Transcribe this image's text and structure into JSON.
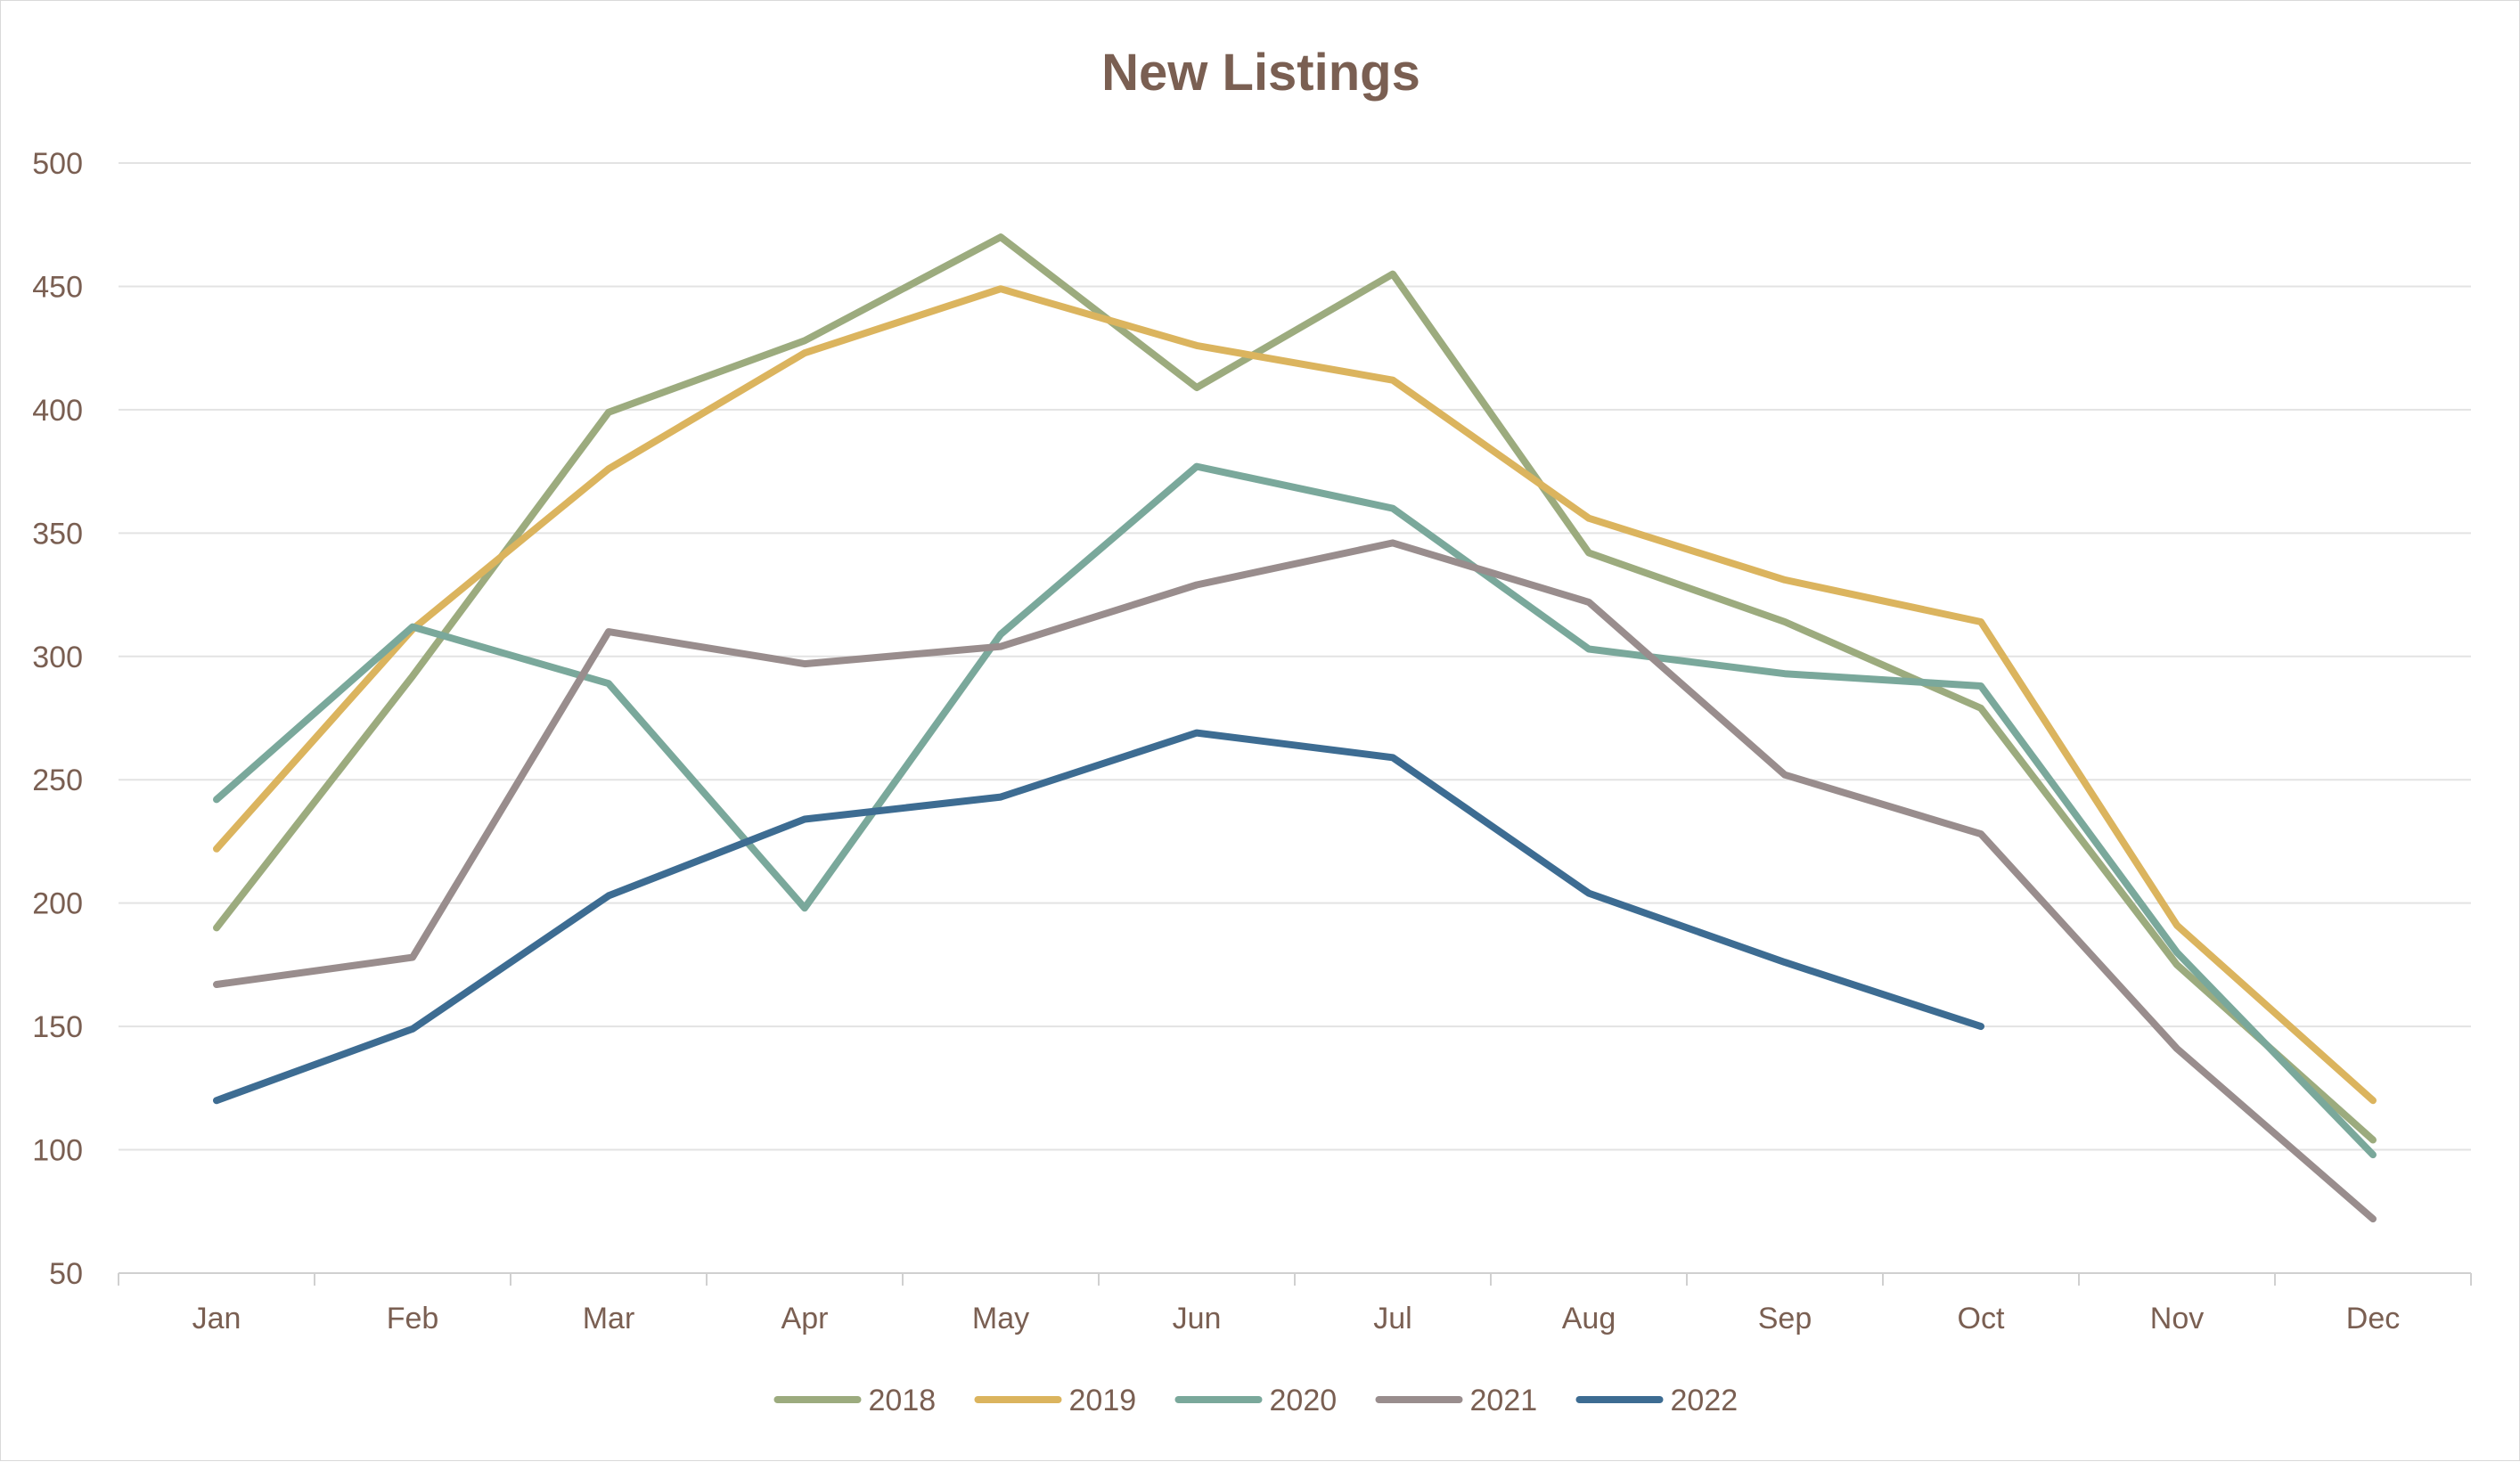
{
  "chart_data": {
    "type": "line",
    "title": "New Listings",
    "xlabel": "",
    "ylabel": "",
    "categories": [
      "Jan",
      "Feb",
      "Mar",
      "Apr",
      "May",
      "Jun",
      "Jul",
      "Aug",
      "Sep",
      "Oct",
      "Nov",
      "Dec"
    ],
    "ylim": [
      50,
      500
    ],
    "yticks": [
      50,
      100,
      150,
      200,
      250,
      300,
      350,
      400,
      450,
      500
    ],
    "grid": true,
    "legend_position": "bottom",
    "series": [
      {
        "name": "2018",
        "color": "#9cab7e",
        "values": [
          190,
          292,
          399,
          428,
          470,
          409,
          455,
          342,
          314,
          279,
          175,
          104
        ]
      },
      {
        "name": "2019",
        "color": "#dbb45e",
        "values": [
          222,
          311,
          376,
          423,
          449,
          426,
          412,
          356,
          331,
          314,
          191,
          120
        ]
      },
      {
        "name": "2020",
        "color": "#7aa89b",
        "values": [
          242,
          312,
          289,
          198,
          309,
          377,
          360,
          303,
          293,
          288,
          180,
          98
        ]
      },
      {
        "name": "2021",
        "color": "#998d8d",
        "values": [
          167,
          178,
          310,
          297,
          304,
          329,
          346,
          322,
          252,
          228,
          141,
          72
        ]
      },
      {
        "name": "2022",
        "color": "#3d6c92",
        "values": [
          120,
          149,
          203,
          234,
          243,
          269,
          259,
          204,
          176,
          150,
          null,
          null
        ]
      }
    ]
  }
}
